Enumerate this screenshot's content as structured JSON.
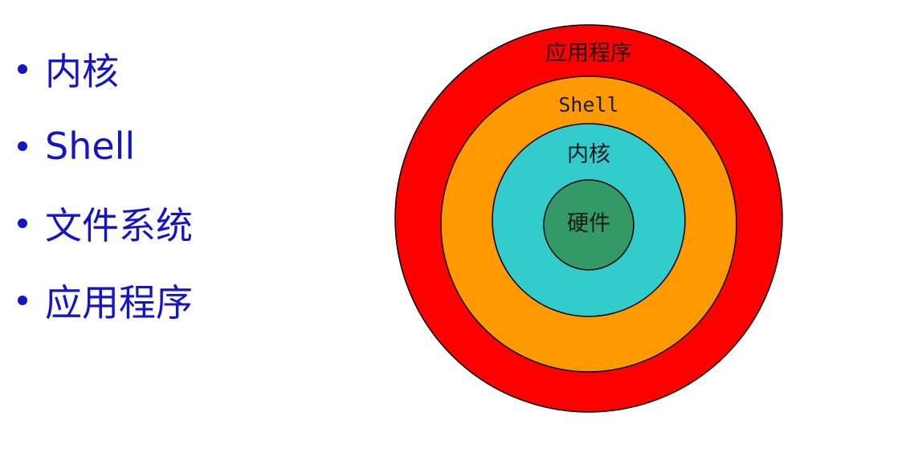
{
  "bullets": [
    "内核",
    "Shell",
    "文件系统",
    "应用程序"
  ],
  "diagram": {
    "layers": [
      {
        "label": "应用程序",
        "color": "#ff0000"
      },
      {
        "label": "Shell",
        "color": "#ff9900"
      },
      {
        "label": "内核",
        "color": "#33cccc"
      },
      {
        "label": "硬件",
        "color": "#339966"
      }
    ]
  }
}
